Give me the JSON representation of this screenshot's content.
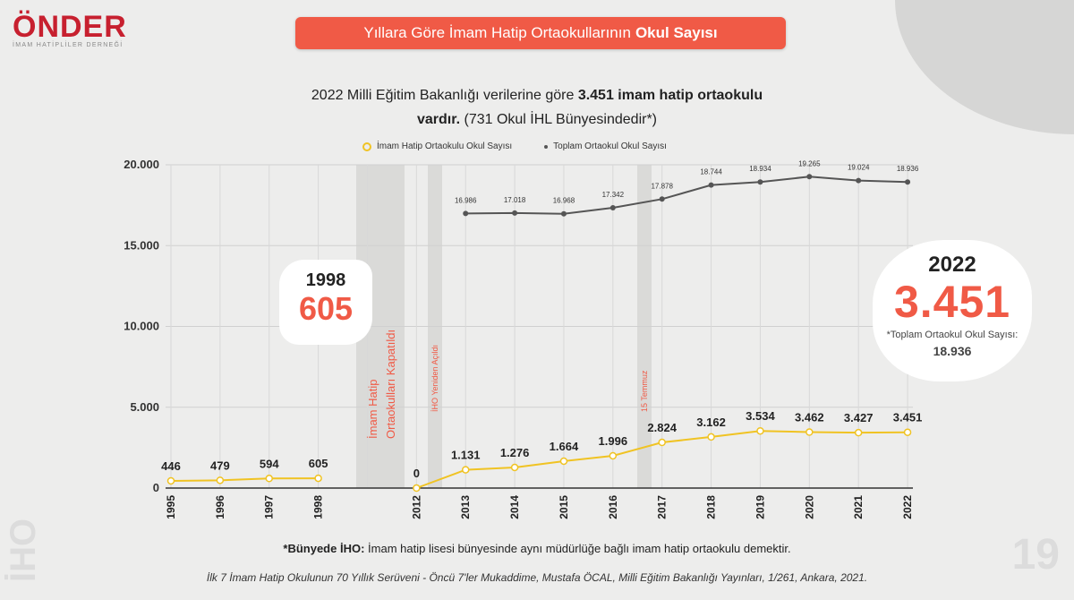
{
  "logo": {
    "brand": "ÖNDER",
    "subtitle": "İMAM HATİPLİLER DERNEĞİ"
  },
  "header": {
    "title_regular": "Yıllara Göre İmam Hatip Ortaokullarının",
    "title_bold": "Okul Sayısı"
  },
  "intro": {
    "part1": "2022 Milli Eğitim Bakanlığı verilerine göre",
    "bold": "3.451 imam hatip ortaokulu vardır.",
    "part2": "(731 Okul İHL Bünyesindedir*)"
  },
  "callout_1998": {
    "year": "1998",
    "value": "605"
  },
  "callout_2022": {
    "year": "2022",
    "value": "3.451",
    "label": "*Toplam Ortaokul Okul Sayısı:",
    "total": "18.936"
  },
  "footnote": {
    "bold": "*Bünyede İHO:",
    "text": "İmam hatip lisesi bünyesinde aynı müdürlüğe bağlı imam hatip ortaokulu demektir."
  },
  "source": "İlk 7 İmam Hatip Okulunun 70 Yıllık Serüveni - Öncü 7'ler Mukaddime, Mustafa ÖCAL, Milli Eğitim Bakanlığı Yayınları, 1/261, Ankara, 2021.",
  "watermark": {
    "side": "İHO",
    "page": "19"
  },
  "chart_data": {
    "type": "line",
    "title": "",
    "xlabel": "",
    "ylabel": "",
    "ylim": [
      0,
      20000
    ],
    "yticks": [
      0,
      5000,
      10000,
      15000,
      20000
    ],
    "ytick_labels": [
      "0",
      "5.000",
      "10.000",
      "15.000",
      "20.000"
    ],
    "grid": true,
    "legend": "top-center",
    "categories": [
      "1995",
      "1996",
      "1997",
      "1998",
      "2012",
      "2013",
      "2014",
      "2015",
      "2016",
      "2017",
      "2018",
      "2019",
      "2020",
      "2021",
      "2022"
    ],
    "series": [
      {
        "name": "İmam Hatip Ortaokulu Okul Sayısı",
        "color": "#f0c323",
        "values": [
          446,
          479,
          594,
          605,
          0,
          1131,
          1276,
          1664,
          1996,
          2824,
          3162,
          3534,
          3462,
          3427,
          3451
        ],
        "labels": [
          "446",
          "479",
          "594",
          "605",
          "0",
          "1.131",
          "1.276",
          "1.664",
          "1.996",
          "2.824",
          "3.162",
          "3.534",
          "3.462",
          "3.427",
          "3.451"
        ]
      },
      {
        "name": "Toplam Ortaokul Okul Sayısı",
        "color": "#555555",
        "values": [
          null,
          null,
          null,
          null,
          null,
          16986,
          17018,
          16968,
          17342,
          17878,
          18744,
          18934,
          19265,
          19024,
          18936
        ],
        "labels": [
          "",
          "",
          "",
          "",
          "",
          "16.986",
          "17.018",
          "16.968",
          "17.342",
          "17.878",
          "18.744",
          "18.934",
          "19.265",
          "19.024",
          "18.936"
        ]
      }
    ],
    "annotations": [
      {
        "text": "İmam Hatip Ortaokulları Kapatıldı",
        "between": [
          "1998",
          "2012"
        ]
      },
      {
        "text": "İHO Yeniden Açıldı",
        "between": [
          "2012",
          "2013"
        ]
      },
      {
        "text": "15 Temmuz",
        "between": [
          "2016",
          "2017"
        ]
      }
    ],
    "accent_color": "#f05a46"
  }
}
